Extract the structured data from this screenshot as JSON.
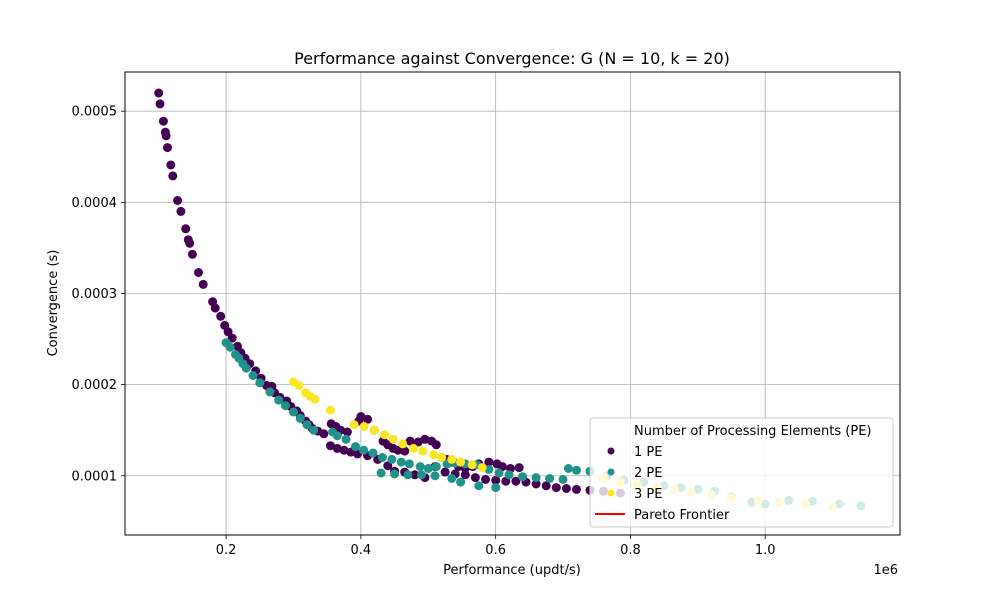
{
  "chart_data": {
    "type": "scatter",
    "title": "Performance against Convergence: G (N = 10, k = 20)",
    "xlabel": "Performance (updt/s)",
    "ylabel": "Convergence (s)",
    "x_offset_label": "1e6",
    "xlim": [
      50000,
      1200000
    ],
    "ylim": [
      3.5e-05,
      0.000543
    ],
    "x_ticks": [
      {
        "value": 200000,
        "label": "0.2"
      },
      {
        "value": 400000,
        "label": "0.4"
      },
      {
        "value": 600000,
        "label": "0.6"
      },
      {
        "value": 800000,
        "label": "0.8"
      },
      {
        "value": 1000000,
        "label": "1.0"
      }
    ],
    "y_ticks": [
      {
        "value": 0.0001,
        "label": "0.0001"
      },
      {
        "value": 0.0002,
        "label": "0.0002"
      },
      {
        "value": 0.0003,
        "label": "0.0003"
      },
      {
        "value": 0.0004,
        "label": "0.0004"
      },
      {
        "value": 0.0005,
        "label": "0.0005"
      }
    ],
    "grid": true,
    "legend_position": "bottom-right",
    "legend_title": "Number of Processing Elements (PE)",
    "series": [
      {
        "name": "1 PE",
        "color": "#440154",
        "points": [
          [
            100000,
            0.00052
          ],
          [
            102000,
            0.000508
          ],
          [
            107000,
            0.000489
          ],
          [
            110000,
            0.000477
          ],
          [
            111000,
            0.000473
          ],
          [
            113000,
            0.00046
          ],
          [
            118000,
            0.000441
          ],
          [
            121000,
            0.000429
          ],
          [
            128000,
            0.000402
          ],
          [
            133000,
            0.00039
          ],
          [
            140000,
            0.000371
          ],
          [
            144000,
            0.000359
          ],
          [
            146000,
            0.000355
          ],
          [
            150000,
            0.000343
          ],
          [
            159000,
            0.000323
          ],
          [
            166000,
            0.00031
          ],
          [
            180000,
            0.000291
          ],
          [
            184000,
            0.000284
          ],
          [
            192000,
            0.000275
          ],
          [
            198000,
            0.000265
          ],
          [
            203000,
            0.000258
          ],
          [
            209000,
            0.000251
          ],
          [
            217000,
            0.000242
          ],
          [
            222000,
            0.000235
          ],
          [
            228000,
            0.000229
          ],
          [
            235000,
            0.000223
          ],
          [
            244000,
            0.000215
          ],
          [
            252000,
            0.000207
          ],
          [
            260000,
            0.000199
          ],
          [
            265000,
            0.000195
          ],
          [
            268000,
            0.000198
          ],
          [
            272000,
            0.000191
          ],
          [
            280000,
            0.000186
          ],
          [
            290000,
            0.000182
          ],
          [
            296000,
            0.000176
          ],
          [
            305000,
            0.000171
          ],
          [
            310000,
            0.000166
          ],
          [
            318000,
            0.00016
          ],
          [
            323000,
            0.000156
          ],
          [
            328000,
            0.000152
          ],
          [
            336000,
            0.000149
          ],
          [
            345000,
            0.000146
          ],
          [
            356000,
            0.000157
          ],
          [
            363000,
            0.000154
          ],
          [
            370000,
            0.00015
          ],
          [
            380000,
            0.000148
          ],
          [
            397000,
            0.00016
          ],
          [
            400000,
            0.000165
          ],
          [
            410000,
            0.000162
          ],
          [
            420000,
            0.00015
          ],
          [
            433000,
            0.000138
          ],
          [
            440000,
            0.000134
          ],
          [
            448000,
            0.00013
          ],
          [
            455000,
            0.000128
          ],
          [
            465000,
            0.000127
          ],
          [
            473000,
            0.000138
          ],
          [
            485000,
            0.000137
          ],
          [
            495000,
            0.00014
          ],
          [
            505000,
            0.000138
          ],
          [
            512000,
            0.000134
          ],
          [
            520000,
            0.00012
          ],
          [
            527000,
            0.000118
          ],
          [
            535000,
            0.000115
          ],
          [
            545000,
            0.00011
          ],
          [
            555000,
            0.000108
          ],
          [
            566000,
            0.00011
          ],
          [
            575000,
            0.000113
          ],
          [
            590000,
            0.000115
          ],
          [
            602000,
            0.000113
          ],
          [
            610000,
            0.00011
          ],
          [
            622000,
            0.000108
          ],
          [
            635000,
            0.000109
          ],
          [
            355000,
            0.000133
          ],
          [
            365000,
            0.00013
          ],
          [
            375000,
            0.000128
          ],
          [
            385000,
            0.000126
          ],
          [
            395000,
            0.000124
          ],
          [
            410000,
            0.000122
          ],
          [
            425000,
            0.000118
          ],
          [
            440000,
            0.000111
          ],
          [
            450000,
            0.000105
          ],
          [
            465000,
            0.000104
          ],
          [
            480000,
            0.000101
          ],
          [
            495000,
            9.8e-05
          ],
          [
            510000,
            0.00011
          ],
          [
            525000,
            0.000104
          ],
          [
            540000,
            0.000102
          ],
          [
            555000,
            0.000101
          ],
          [
            570000,
            9.8e-05
          ],
          [
            585000,
            9.6e-05
          ],
          [
            600000,
            9.5e-05
          ],
          [
            615000,
            9.4e-05
          ],
          [
            630000,
            9.4e-05
          ],
          [
            645000,
            9.3e-05
          ],
          [
            660000,
            9.1e-05
          ],
          [
            675000,
            8.9e-05
          ],
          [
            690000,
            8.7e-05
          ],
          [
            705000,
            8.6e-05
          ],
          [
            720000,
            8.5e-05
          ],
          [
            740000,
            8.4e-05
          ],
          [
            760000,
            8.3e-05
          ],
          [
            785000,
            8.1e-05
          ]
        ]
      },
      {
        "name": "2 PE",
        "color": "#21918c",
        "points": [
          [
            200000,
            0.000246
          ],
          [
            206000,
            0.000241
          ],
          [
            214000,
            0.000233
          ],
          [
            219000,
            0.000229
          ],
          [
            225000,
            0.000223
          ],
          [
            230000,
            0.000218
          ],
          [
            240000,
            0.00021
          ],
          [
            250000,
            0.000202
          ],
          [
            265000,
            0.000192
          ],
          [
            278000,
            0.000183
          ],
          [
            288000,
            0.000177
          ],
          [
            300000,
            0.00017
          ],
          [
            310000,
            0.000163
          ],
          [
            320000,
            0.000156
          ],
          [
            330000,
            0.00015
          ],
          [
            358000,
            0.000148
          ],
          [
            365000,
            0.000144
          ],
          [
            378000,
            0.00014
          ],
          [
            392000,
            0.000132
          ],
          [
            404000,
            0.000128
          ],
          [
            418000,
            0.000125
          ],
          [
            432000,
            0.00012
          ],
          [
            446000,
            0.000118
          ],
          [
            460000,
            0.000115
          ],
          [
            472000,
            0.000113
          ],
          [
            488000,
            0.00011
          ],
          [
            500000,
            0.000108
          ],
          [
            512000,
            0.00011
          ],
          [
            528000,
            0.000113
          ],
          [
            540000,
            0.000114
          ],
          [
            555000,
            0.000113
          ],
          [
            572000,
            0.000112
          ],
          [
            590000,
            0.000107
          ],
          [
            605000,
            0.000103
          ],
          [
            620000,
            0.000101
          ],
          [
            640000,
            9.9e-05
          ],
          [
            660000,
            9.8e-05
          ],
          [
            680000,
            9.7e-05
          ],
          [
            700000,
            9.6e-05
          ],
          [
            708000,
            0.000108
          ],
          [
            720000,
            0.000106
          ],
          [
            535000,
            9.7e-05
          ],
          [
            548000,
            9.3e-05
          ],
          [
            575000,
            8.9e-05
          ],
          [
            600000,
            8.7e-05
          ],
          [
            740000,
            0.000105
          ],
          [
            765000,
            0.0001
          ],
          [
            790000,
            9.5e-05
          ],
          [
            820000,
            9.3e-05
          ],
          [
            850000,
            8.9e-05
          ],
          [
            875000,
            8.7e-05
          ],
          [
            900000,
            8.5e-05
          ],
          [
            925000,
            8.3e-05
          ],
          [
            950000,
            7.7e-05
          ],
          [
            980000,
            7.1e-05
          ],
          [
            1000000,
            6.9e-05
          ],
          [
            1035000,
            7.3e-05
          ],
          [
            1070000,
            7.2e-05
          ],
          [
            1110000,
            6.9e-05
          ],
          [
            1142000,
            6.7e-05
          ],
          [
            430000,
            0.000103
          ],
          [
            450000,
            0.000102
          ],
          [
            470000,
            0.000101
          ],
          [
            490000,
            0.000101
          ],
          [
            510000,
            0.0001
          ]
        ]
      },
      {
        "name": "3 PE",
        "color": "#fde725",
        "points": [
          [
            300000,
            0.000203
          ],
          [
            308000,
            0.000199
          ],
          [
            318000,
            0.000191
          ],
          [
            325000,
            0.000187
          ],
          [
            332000,
            0.000184
          ],
          [
            355000,
            0.000172
          ],
          [
            390000,
            0.000156
          ],
          [
            405000,
            0.000154
          ],
          [
            420000,
            0.00015
          ],
          [
            435000,
            0.000145
          ],
          [
            448000,
            0.00014
          ],
          [
            462000,
            0.000135
          ],
          [
            478000,
            0.00013
          ],
          [
            492000,
            0.000127
          ],
          [
            508000,
            0.000123
          ],
          [
            520000,
            0.00012
          ],
          [
            535000,
            0.000118
          ],
          [
            548000,
            0.000115
          ],
          [
            565000,
            0.000112
          ],
          [
            580000,
            0.000109
          ],
          [
            760000,
            9.8e-05
          ],
          [
            785000,
            9.3e-05
          ],
          [
            810000,
            9e-05
          ],
          [
            840000,
            8.7e-05
          ],
          [
            865000,
            8.5e-05
          ],
          [
            890000,
            8.2e-05
          ],
          [
            920000,
            7.9e-05
          ],
          [
            950000,
            7.6e-05
          ],
          [
            990000,
            7.3e-05
          ],
          [
            1020000,
            7.1e-05
          ],
          [
            1060000,
            6.9e-05
          ],
          [
            1100000,
            6.6e-05
          ]
        ]
      }
    ],
    "frontier": {
      "name": "Pareto Frontier",
      "color": "#ff0000"
    }
  }
}
